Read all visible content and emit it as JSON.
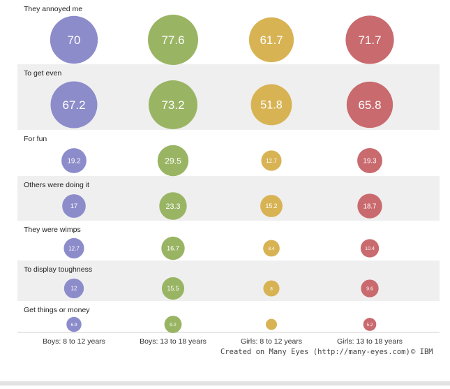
{
  "chart_data": {
    "type": "bubble",
    "title": "",
    "categories": [
      "They annoyed me",
      "To get even",
      "For fun",
      "Others were doing it",
      "They were wimps",
      "To display toughness",
      "Get things or money"
    ],
    "series": [
      {
        "name": "Boys: 8 to 12 years",
        "color": "#8d8ccb",
        "values": [
          70,
          67.2,
          19.2,
          17,
          12.7,
          12,
          6.9
        ]
      },
      {
        "name": "Boys: 13 to 18 years",
        "color": "#99b564",
        "values": [
          77.6,
          73.2,
          29.5,
          23.3,
          16.7,
          15.5,
          9.2
        ]
      },
      {
        "name": "Girls: 8 to 12 years",
        "color": "#d8b354",
        "values": [
          61.7,
          51.8,
          12.7,
          15.2,
          8.4,
          8,
          null
        ]
      },
      {
        "name": "Girls: 13 to 18 years",
        "color": "#c96a6e",
        "values": [
          71.7,
          65.8,
          19.3,
          18.7,
          10.4,
          9.6,
          5.2
        ]
      }
    ],
    "grid": false,
    "legend": "none",
    "row_shading": "alternating"
  },
  "credit": {
    "text": "Created on Many Eyes (http://many-eyes.com)",
    "copyright": "© IBM"
  }
}
